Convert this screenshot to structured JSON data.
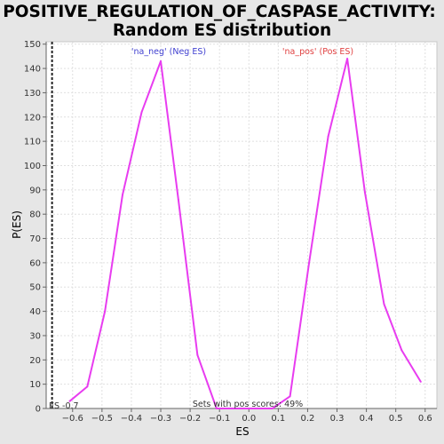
{
  "chart_data": {
    "type": "line",
    "title_line1": "POSITIVE_REGULATION_OF_CASPASE_ACTIVITY:",
    "title_line2": "Random ES distribution",
    "xlabel": "ES",
    "ylabel": "P(ES)",
    "xlim": [
      -0.69,
      0.64
    ],
    "ylim": [
      0,
      151
    ],
    "x_ticks": [
      -0.6,
      -0.5,
      -0.4,
      -0.3,
      -0.2,
      -0.1,
      0.0,
      0.1,
      0.2,
      0.3,
      0.4,
      0.5,
      0.6
    ],
    "x_tick_labels": [
      "−0.6",
      "−0.5",
      "−0.4",
      "−0.3",
      "−0.2",
      "−0.1",
      "0.0",
      "0.1",
      "0.2",
      "0.3",
      "0.4",
      "0.5",
      "0.6"
    ],
    "y_ticks": [
      0,
      10,
      20,
      30,
      40,
      50,
      60,
      70,
      80,
      90,
      100,
      110,
      120,
      130,
      140,
      150
    ],
    "series": [
      {
        "color": "#e83cf0",
        "x": [
          -0.61,
          -0.55,
          -0.49,
          -0.43,
          -0.365,
          -0.3,
          -0.24,
          -0.175,
          -0.11,
          -0.05,
          0.02,
          0.08,
          0.14,
          0.205,
          0.27,
          0.335,
          0.395,
          0.46,
          0.52,
          0.585
        ],
        "y": [
          3,
          9,
          40,
          88,
          122,
          143,
          86,
          22,
          0,
          0,
          0,
          0,
          5,
          60,
          112,
          144,
          89,
          43,
          24,
          11
        ]
      }
    ],
    "neg_label": "'na_neg' (Neg ES)",
    "neg_label_color": "#4040d0",
    "pos_label": "'na_pos' (Pos ES)",
    "pos_label_color": "#e04040",
    "marker_x": -0.67,
    "marker_label": "ES -0.7",
    "footer_text": "Sets with pos scores: 49%",
    "grid": true
  }
}
